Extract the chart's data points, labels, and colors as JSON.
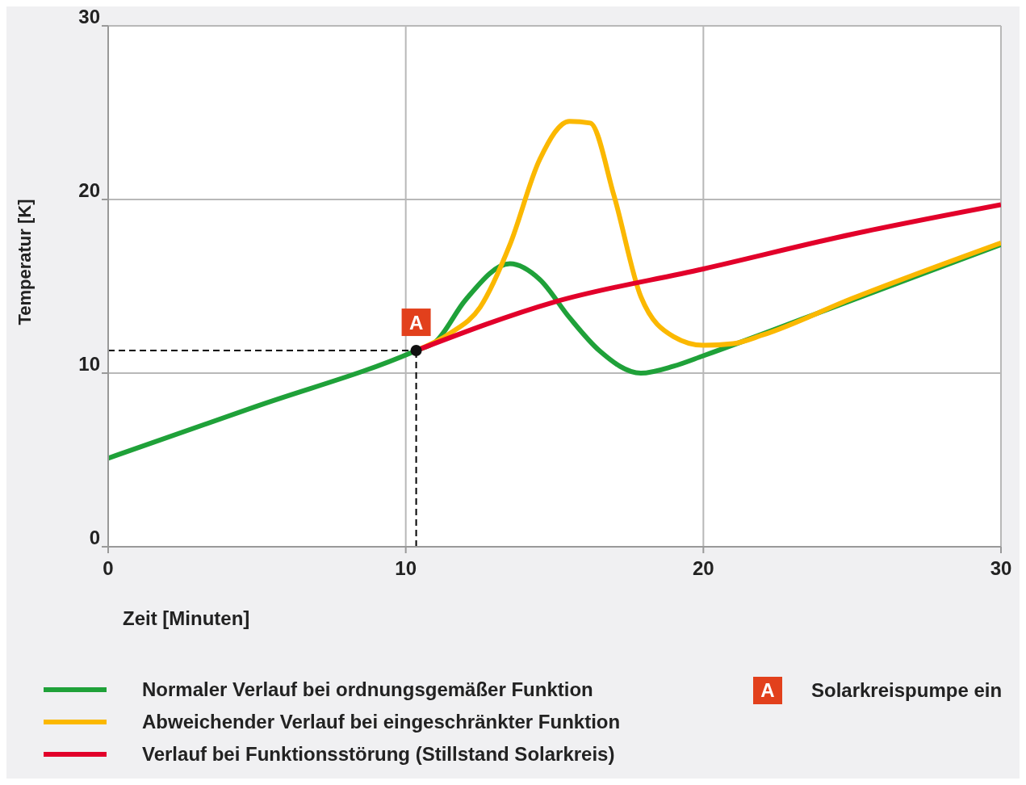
{
  "chart_data": {
    "type": "line",
    "xlabel": "Zeit [Minuten]",
    "ylabel": "Temperatur [K]",
    "xlim": [
      0,
      30
    ],
    "xticks": [
      0,
      10,
      20,
      30
    ],
    "ylim": [
      0,
      30
    ],
    "yticks": [
      0,
      10,
      20,
      30
    ],
    "grid": true,
    "legend": "bottom",
    "marker": "none",
    "line_style": "solid",
    "series": [
      {
        "name": "Normaler Verlauf bei ordnungsgemäßer Funktion",
        "color": "#1fa139",
        "x": [
          0,
          5,
          10.35,
          11,
          12,
          13.5,
          14.5,
          15.5,
          16.5,
          17.9,
          19,
          20,
          25,
          30
        ],
        "values": [
          5.1,
          8.1,
          11.3,
          11.8,
          14.2,
          16.3,
          15.4,
          13.2,
          11.3,
          10.0,
          10.4,
          11.0,
          14.2,
          17.4
        ]
      },
      {
        "name": "Abweichender Verlauf bei eingeschränkter Funktion",
        "color": "#fbb800",
        "x": [
          10.35,
          11.5,
          12.5,
          13.5,
          14.5,
          15.5,
          16.2,
          17,
          17.9,
          19,
          20,
          21,
          22,
          25,
          30
        ],
        "values": [
          11.3,
          12.3,
          13.8,
          17.4,
          22.3,
          24.5,
          24.4,
          20.2,
          14.4,
          12.1,
          11.6,
          11.7,
          12.2,
          14.3,
          17.5
        ]
      },
      {
        "name": "Verlauf bei Funktionsstörung (Stillstand Solarkreis)",
        "color": "#e2002a",
        "x": [
          10.35,
          15,
          20,
          25,
          30
        ],
        "values": [
          11.3,
          14.1,
          16.0,
          18.0,
          19.7
        ]
      }
    ],
    "ref_lines": [
      {
        "axis": "x",
        "value": 10.35,
        "line_style": "dashed",
        "color": "#000000"
      },
      {
        "axis": "y",
        "value": 11.3,
        "line_style": "dashed",
        "color": "#000000"
      }
    ],
    "annotations": [
      {
        "text": "A",
        "x": 10.35,
        "y": 11.3
      },
      "Solarkreispumpe ein"
    ]
  }
}
